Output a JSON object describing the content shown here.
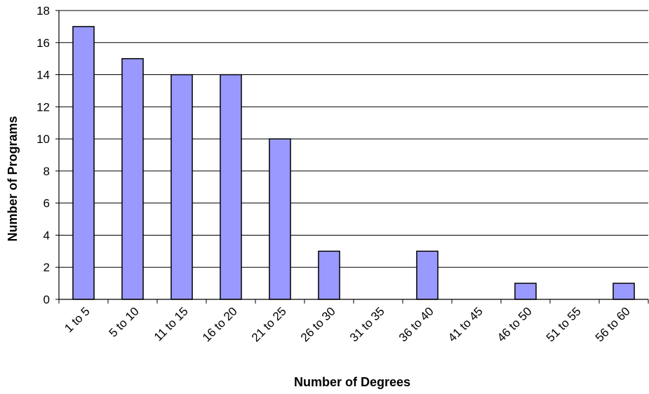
{
  "chart_data": {
    "type": "bar",
    "title": "",
    "xlabel": "Number of Degrees",
    "ylabel": "Number of Programs",
    "categories": [
      "1 to 5",
      "5 to 10",
      "11 to 15",
      "16 to 20",
      "21 to 25",
      "26 to 30",
      "31 to 35",
      "36 to 40",
      "41 to 45",
      "46 to 50",
      "51 to 55",
      "56 to 60"
    ],
    "values": [
      17,
      15,
      14,
      14,
      10,
      3,
      0,
      3,
      0,
      1,
      0,
      1
    ],
    "ylim": [
      0,
      18
    ],
    "yticks": [
      0,
      2,
      4,
      6,
      8,
      10,
      12,
      14,
      16,
      18
    ],
    "grid": true,
    "legend": "none",
    "colors": {
      "bar_fill": "#9999ff",
      "bar_stroke": "#000000",
      "grid": "#000000"
    }
  }
}
